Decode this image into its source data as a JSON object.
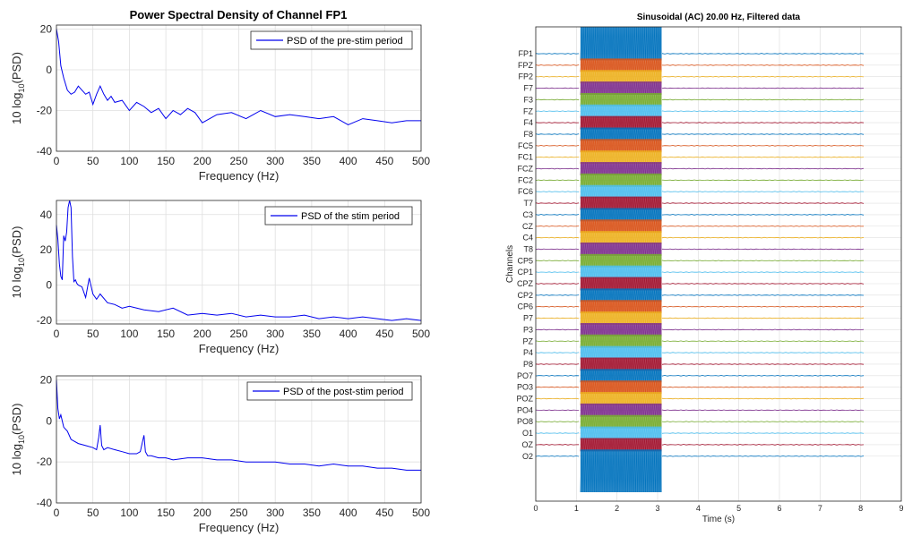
{
  "colors": {
    "psd_line": "#0000ee",
    "grid": "#dfdfdf",
    "axis": "#262626",
    "channel_palette": [
      "#0072bd",
      "#d95319",
      "#edb120",
      "#7e2f8e",
      "#77ac30",
      "#4dbeee",
      "#a2142f"
    ]
  },
  "chart_data": [
    {
      "type": "line",
      "title": "Power Spectral Density of Channel FP1",
      "xlabel": "Frequency (Hz)",
      "ylabel_prefix": "10 log",
      "ylabel_sub": "10",
      "ylabel_suffix": "(PSD)",
      "xlim": [
        0,
        500
      ],
      "ylim": [
        -40,
        22
      ],
      "xticks": [
        0,
        50,
        100,
        150,
        200,
        250,
        300,
        350,
        400,
        450,
        500
      ],
      "yticks": [
        20,
        0,
        -20,
        -40
      ],
      "grid": true,
      "legend_position": "top-right",
      "series": [
        {
          "name": "PSD of the pre-stim period",
          "x": [
            0,
            3,
            6,
            10,
            15,
            20,
            25,
            30,
            35,
            40,
            45,
            50,
            55,
            60,
            65,
            70,
            75,
            80,
            90,
            100,
            110,
            120,
            130,
            140,
            150,
            160,
            170,
            180,
            190,
            200,
            220,
            240,
            260,
            280,
            300,
            320,
            340,
            360,
            380,
            400,
            420,
            440,
            460,
            480,
            500
          ],
          "y": [
            20,
            14,
            2,
            -4,
            -10,
            -12,
            -11,
            -8,
            -10,
            -12,
            -11,
            -17,
            -12,
            -8,
            -12,
            -15,
            -13,
            -16,
            -15,
            -20,
            -16,
            -18,
            -21,
            -19,
            -24,
            -20,
            -22,
            -19,
            -21,
            -26,
            -22,
            -21,
            -24,
            -20,
            -23,
            -22,
            -23,
            -24,
            -23,
            -27,
            -24,
            -25,
            -26,
            -25,
            -25
          ]
        }
      ]
    },
    {
      "type": "line",
      "title": "",
      "xlabel": "Frequency (Hz)",
      "ylabel_prefix": "10 log",
      "ylabel_sub": "10",
      "ylabel_suffix": "(PSD)",
      "xlim": [
        0,
        500
      ],
      "ylim": [
        -22,
        48
      ],
      "xticks": [
        0,
        50,
        100,
        150,
        200,
        250,
        300,
        350,
        400,
        450,
        500
      ],
      "yticks": [
        40,
        20,
        0,
        -20
      ],
      "grid": true,
      "legend_position": "top-right",
      "series": [
        {
          "name": "PSD of the stim period",
          "x": [
            0,
            2,
            4,
            6,
            8,
            10,
            12,
            14,
            16,
            18,
            20,
            22,
            24,
            26,
            28,
            30,
            35,
            40,
            45,
            50,
            55,
            60,
            70,
            80,
            90,
            100,
            120,
            140,
            160,
            180,
            200,
            220,
            240,
            260,
            280,
            300,
            320,
            340,
            360,
            380,
            400,
            420,
            440,
            460,
            480,
            500
          ],
          "y": [
            34,
            26,
            12,
            5,
            3,
            28,
            25,
            30,
            44,
            48,
            44,
            16,
            2,
            3,
            1,
            0,
            -1,
            -7,
            4,
            -5,
            -8,
            -5,
            -10,
            -11,
            -13,
            -12,
            -14,
            -15,
            -13,
            -17,
            -16,
            -17,
            -16,
            -18,
            -17,
            -18,
            -18,
            -17,
            -19,
            -18,
            -19,
            -18,
            -19,
            -20,
            -19,
            -20
          ]
        }
      ]
    },
    {
      "type": "line",
      "title": "",
      "xlabel": "Frequency (Hz)",
      "ylabel_prefix": "10 log",
      "ylabel_sub": "10",
      "ylabel_suffix": "(PSD)",
      "xlim": [
        0,
        500
      ],
      "ylim": [
        -40,
        22
      ],
      "xticks": [
        0,
        50,
        100,
        150,
        200,
        250,
        300,
        350,
        400,
        450,
        500
      ],
      "yticks": [
        20,
        0,
        -20,
        -40
      ],
      "grid": true,
      "legend_position": "top-right",
      "series": [
        {
          "name": "PSD of the post-stim period",
          "x": [
            0,
            2,
            4,
            6,
            8,
            10,
            15,
            20,
            30,
            40,
            50,
            55,
            58,
            60,
            62,
            65,
            70,
            80,
            90,
            100,
            110,
            115,
            118,
            120,
            122,
            125,
            130,
            140,
            150,
            160,
            180,
            200,
            220,
            240,
            260,
            280,
            300,
            320,
            340,
            360,
            380,
            400,
            420,
            440,
            460,
            480,
            500
          ],
          "y": [
            20,
            6,
            1,
            3,
            0,
            -3,
            -5,
            -9,
            -11,
            -12,
            -13,
            -14,
            -8,
            -2,
            -12,
            -14,
            -13,
            -14,
            -15,
            -16,
            -16,
            -15,
            -10,
            -7,
            -15,
            -17,
            -17,
            -18,
            -18,
            -19,
            -18,
            -18,
            -19,
            -19,
            -20,
            -20,
            -20,
            -21,
            -21,
            -22,
            -21,
            -22,
            -22,
            -23,
            -23,
            -24,
            -24
          ]
        }
      ]
    },
    {
      "type": "line",
      "title": "Sinusoidal (AC) 20.00 Hz, Filtered data",
      "xlabel": "Time (s)",
      "ylabel": "Channels",
      "xlim": [
        0,
        9
      ],
      "xticks": [
        0,
        1,
        2,
        3,
        4,
        5,
        6,
        7,
        8,
        9
      ],
      "grid": true,
      "signal_span": [
        0,
        8.1
      ],
      "stimulation_window": [
        1.1,
        3.1
      ],
      "channels": [
        "FP1",
        "FPZ",
        "FP2",
        "F7",
        "F3",
        "FZ",
        "F4",
        "F8",
        "FC5",
        "FC1",
        "FCZ",
        "FC2",
        "FC6",
        "T7",
        "C3",
        "CZ",
        "C4",
        "T8",
        "CP5",
        "CP1",
        "CPZ",
        "CP2",
        "CP6",
        "P7",
        "P3",
        "PZ",
        "P4",
        "P8",
        "PO7",
        "PO3",
        "POZ",
        "PO4",
        "PO8",
        "O1",
        "OZ",
        "O2"
      ]
    }
  ]
}
